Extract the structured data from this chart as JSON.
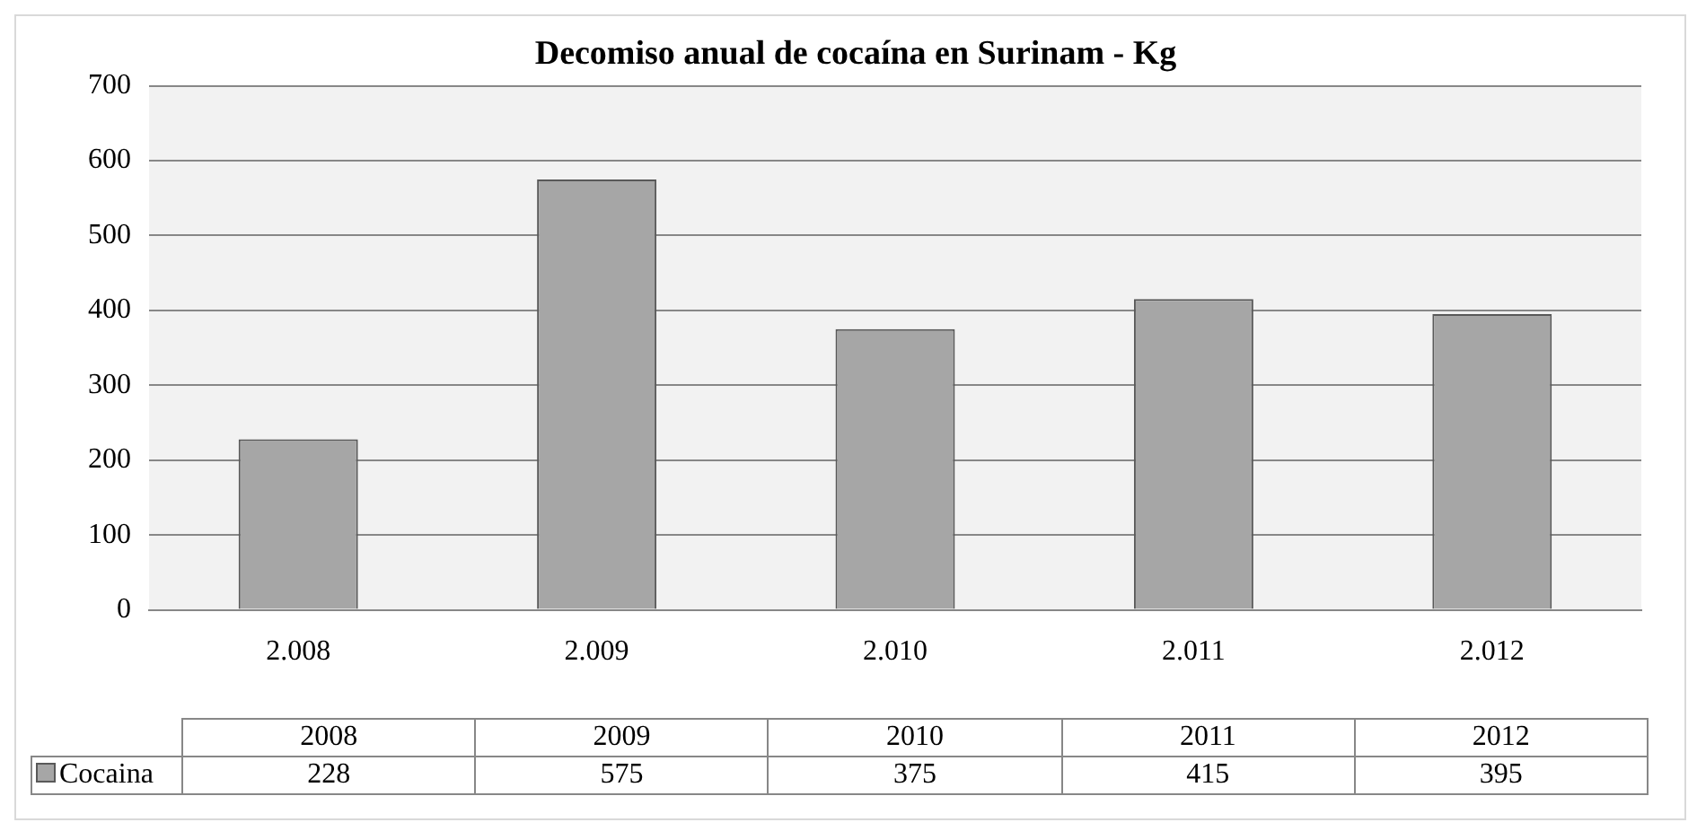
{
  "chart_data": {
    "type": "bar",
    "title": "Decomiso anual de cocaína en Surinam - Kg",
    "categories": [
      "2.008",
      "2.009",
      "2.010",
      "2.011",
      "2.012"
    ],
    "series": [
      {
        "name": "Cocaina",
        "color": "#a6a6a6",
        "values": [
          228,
          575,
          375,
          415,
          395
        ]
      }
    ],
    "ylim": [
      0,
      700
    ],
    "yticks": [
      0,
      100,
      200,
      300,
      400,
      500,
      600,
      700
    ],
    "grid": "y",
    "legend": "bottom",
    "data_labels": true,
    "annotations": [
      "2008",
      "2009",
      "2010",
      "2011",
      "2012"
    ]
  }
}
